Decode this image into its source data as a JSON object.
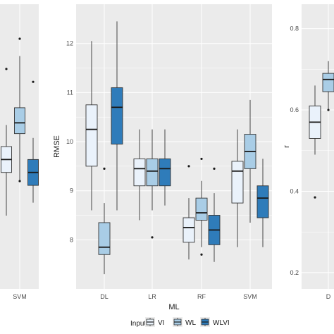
{
  "chart_data": [
    {
      "type": "box",
      "panel": "left-cropped",
      "xlabel": "",
      "ylabel": "",
      "categories": [
        "SVM"
      ],
      "ylim": [
        0.2,
        0.86
      ],
      "series": [
        {
          "name": "VI",
          "color": "#eaf2fb",
          "boxes": [
            {
              "category": "SVM",
              "min": 0.37,
              "q1": 0.47,
              "median": 0.5,
              "q3": 0.53,
              "max": 0.58,
              "outliers": [
                0.71
              ]
            }
          ]
        },
        {
          "name": "WL",
          "color": "#a9cde6",
          "boxes": [
            {
              "category": "SVM",
              "min": 0.45,
              "q1": 0.56,
              "median": 0.585,
              "q3": 0.62,
              "max": 0.74,
              "outliers": [
                0.78,
                0.45
              ]
            }
          ]
        },
        {
          "name": "WLVI",
          "color": "#2f7cba",
          "boxes": [
            {
              "category": "SVM",
              "min": 0.4,
              "q1": 0.44,
              "median": 0.47,
              "q3": 0.5,
              "max": 0.55,
              "outliers": [
                0.68
              ]
            }
          ]
        }
      ]
    },
    {
      "type": "box",
      "panel": "middle",
      "xlabel": "ML",
      "ylabel": "RMSE",
      "categories": [
        "DL",
        "LR",
        "RF",
        "SVM"
      ],
      "yticks": [
        "8",
        "9",
        "10",
        "11",
        "12"
      ],
      "ylim": [
        7.0,
        12.8
      ],
      "grid": true,
      "series": [
        {
          "name": "VI",
          "color": "#eaf2fb",
          "boxes": [
            {
              "category": "DL",
              "min": 8.6,
              "q1": 9.5,
              "median": 10.25,
              "q3": 10.75,
              "max": 12.05,
              "outliers": []
            },
            {
              "category": "LR",
              "min": 8.4,
              "q1": 9.1,
              "median": 9.45,
              "q3": 9.65,
              "max": 10.25,
              "outliers": []
            },
            {
              "category": "RF",
              "min": 7.6,
              "q1": 7.95,
              "median": 8.25,
              "q3": 8.45,
              "max": 8.85,
              "outliers": [
                9.5
              ]
            },
            {
              "category": "SVM",
              "min": 7.85,
              "q1": 8.75,
              "median": 9.4,
              "q3": 9.6,
              "max": 10.25,
              "outliers": []
            }
          ]
        },
        {
          "name": "WL",
          "color": "#a9cde6",
          "boxes": [
            {
              "category": "DL",
              "min": 7.3,
              "q1": 7.7,
              "median": 7.85,
              "q3": 8.35,
              "max": 8.75,
              "outliers": [
                9.45
              ]
            },
            {
              "category": "LR",
              "min": 8.6,
              "q1": 9.1,
              "median": 9.4,
              "q3": 9.65,
              "max": 10.25,
              "outliers": [
                8.05
              ]
            },
            {
              "category": "RF",
              "min": 7.85,
              "q1": 8.4,
              "median": 8.55,
              "q3": 8.85,
              "max": 9.2,
              "outliers": [
                9.65,
                7.7
              ]
            },
            {
              "category": "SVM",
              "min": 8.35,
              "q1": 9.45,
              "median": 9.8,
              "q3": 10.15,
              "max": 10.85,
              "outliers": []
            }
          ]
        },
        {
          "name": "WLVI",
          "color": "#2f7cba",
          "boxes": [
            {
              "category": "DL",
              "min": 8.6,
              "q1": 9.95,
              "median": 10.7,
              "q3": 11.1,
              "max": 12.45,
              "outliers": []
            },
            {
              "category": "LR",
              "min": 8.7,
              "q1": 9.1,
              "median": 9.45,
              "q3": 9.65,
              "max": 10.25,
              "outliers": []
            },
            {
              "category": "RF",
              "min": 7.55,
              "q1": 7.9,
              "median": 8.2,
              "q3": 8.5,
              "max": 8.95,
              "outliers": [
                9.45
              ]
            },
            {
              "category": "SVM",
              "min": 7.85,
              "q1": 8.45,
              "median": 8.85,
              "q3": 9.1,
              "max": 9.65,
              "outliers": []
            }
          ]
        }
      ]
    },
    {
      "type": "box",
      "panel": "right-cropped",
      "xlabel": "",
      "ylabel": "r",
      "categories": [
        "D"
      ],
      "yticks": [
        "0.2",
        "0.4",
        "0.6",
        "0.8"
      ],
      "ylim": [
        0.16,
        0.86
      ],
      "grid": true,
      "series": [
        {
          "name": "VI",
          "color": "#eaf2fb",
          "boxes": [
            {
              "category": "D",
              "min": 0.49,
              "q1": 0.53,
              "median": 0.57,
              "q3": 0.61,
              "max": 0.66,
              "outliers": [
                0.385
              ]
            }
          ]
        },
        {
          "name": "WL",
          "color": "#a9cde6",
          "boxes": [
            {
              "category": "D",
              "min": 0.6,
              "q1": 0.645,
              "median": 0.675,
              "q3": 0.69,
              "max": 0.72,
              "outliers": [
                0.6
              ]
            }
          ]
        }
      ]
    }
  ],
  "legend": {
    "title": "Input",
    "items": [
      {
        "label": "VI",
        "color": "#eaf2fb"
      },
      {
        "label": "WL",
        "color": "#a9cde6"
      },
      {
        "label": "WLVI",
        "color": "#2f7cba"
      }
    ]
  },
  "colors": {
    "panel_bg": "#ebebeb",
    "grid": "#ffffff",
    "box_stroke": "#333333"
  }
}
